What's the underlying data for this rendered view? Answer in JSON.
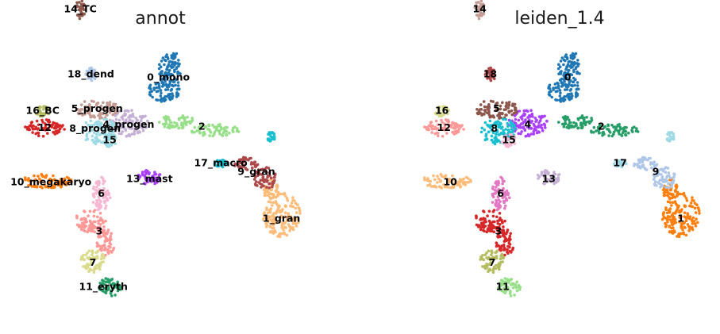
{
  "chart_data": [
    {
      "type": "scatter",
      "title": "annot",
      "xlabel": "",
      "ylabel": "",
      "axes_visible": false,
      "clusters": [
        {
          "name": "0_mono",
          "label_x": 7.2,
          "label_y": 8.6,
          "color": "#1f77b4"
        },
        {
          "name": "1_gran",
          "label_x": 12.6,
          "label_y": 1.85,
          "color": "#ffbb78"
        },
        {
          "name": "2",
          "label_x": 8.8,
          "label_y": 6.25,
          "color": "#98df8a"
        },
        {
          "name": "3",
          "label_x": 3.9,
          "label_y": 1.25,
          "color": "#ff9896"
        },
        {
          "name": "4_progen",
          "label_x": 5.3,
          "label_y": 6.35,
          "color": "#c5b0d5"
        },
        {
          "name": "5_progen",
          "label_x": 3.8,
          "label_y": 7.1,
          "color": "#c49c94"
        },
        {
          "name": "6",
          "label_x": 4.0,
          "label_y": 3.05,
          "color": "#f7b6d2"
        },
        {
          "name": "7",
          "label_x": 3.6,
          "label_y": -0.25,
          "color": "#dbdb8d"
        },
        {
          "name": "8_progen",
          "label_x": 3.7,
          "label_y": 6.15,
          "color": "#9edae5"
        },
        {
          "name": "9_gran",
          "label_x": 11.4,
          "label_y": 4.1,
          "color": "#ad494a"
        },
        {
          "name": "10_megakaryo",
          "label_x": 1.6,
          "label_y": 3.6,
          "color": "#ff7f0e"
        },
        {
          "name": "11_eryth",
          "label_x": 4.1,
          "label_y": -1.4,
          "color": "#279e68"
        },
        {
          "name": "12",
          "label_x": 1.3,
          "label_y": 6.2,
          "color": "#d62728"
        },
        {
          "name": "13_mast",
          "label_x": 6.3,
          "label_y": 3.75,
          "color": "#aa40fc"
        },
        {
          "name": "14_TC",
          "label_x": 3.0,
          "label_y": 11.85,
          "color": "#8c564b"
        },
        {
          "name": "15",
          "label_x": 4.4,
          "label_y": 5.6,
          "color": "#9edae5"
        },
        {
          "name": "16_BC",
          "label_x": 1.2,
          "label_y": 7.0,
          "color": "#b5bd61"
        },
        {
          "name": "17_macro",
          "label_x": 9.7,
          "label_y": 4.5,
          "color": "#17becf"
        },
        {
          "name": "18_dend",
          "label_x": 3.5,
          "label_y": 8.75,
          "color": "#aec7e8"
        }
      ]
    },
    {
      "type": "scatter",
      "title": "leiden_1.4",
      "xlabel": "",
      "ylabel": "",
      "axes_visible": false,
      "clusters": [
        {
          "name": "0",
          "label_x": 7.2,
          "label_y": 8.6,
          "color": "#1f77b4"
        },
        {
          "name": "1",
          "label_x": 12.6,
          "label_y": 1.85,
          "color": "#ff7f0e"
        },
        {
          "name": "2",
          "label_x": 8.8,
          "label_y": 6.25,
          "color": "#279e68"
        },
        {
          "name": "3",
          "label_x": 3.9,
          "label_y": 1.25,
          "color": "#d62728"
        },
        {
          "name": "4",
          "label_x": 5.3,
          "label_y": 6.35,
          "color": "#aa40fc"
        },
        {
          "name": "5",
          "label_x": 3.8,
          "label_y": 7.1,
          "color": "#8c564b"
        },
        {
          "name": "6",
          "label_x": 4.0,
          "label_y": 3.05,
          "color": "#e377c2"
        },
        {
          "name": "7",
          "label_x": 3.6,
          "label_y": -0.25,
          "color": "#b5bd61"
        },
        {
          "name": "8",
          "label_x": 3.7,
          "label_y": 6.15,
          "color": "#17becf"
        },
        {
          "name": "9",
          "label_x": 11.4,
          "label_y": 4.1,
          "color": "#aec7e8"
        },
        {
          "name": "10",
          "label_x": 1.6,
          "label_y": 3.6,
          "color": "#ffbb78"
        },
        {
          "name": "11",
          "label_x": 4.1,
          "label_y": -1.4,
          "color": "#98df8a"
        },
        {
          "name": "12",
          "label_x": 1.3,
          "label_y": 6.2,
          "color": "#ff9896"
        },
        {
          "name": "13",
          "label_x": 6.3,
          "label_y": 3.75,
          "color": "#c5b0d5"
        },
        {
          "name": "14",
          "label_x": 3.0,
          "label_y": 11.85,
          "color": "#c49c94"
        },
        {
          "name": "15",
          "label_x": 4.4,
          "label_y": 5.6,
          "color": "#f7b6d2"
        },
        {
          "name": "16",
          "label_x": 1.2,
          "label_y": 7.0,
          "color": "#dbdb8d"
        },
        {
          "name": "17",
          "label_x": 9.7,
          "label_y": 4.5,
          "color": "#9edae5"
        },
        {
          "name": "18",
          "label_x": 3.5,
          "label_y": 8.75,
          "color": "#ad494a"
        }
      ]
    }
  ]
}
